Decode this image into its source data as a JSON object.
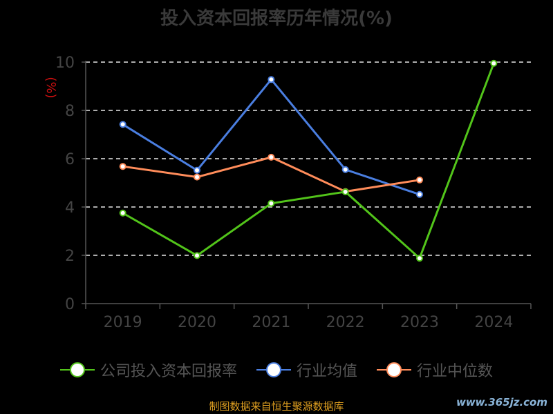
{
  "chart_data": {
    "type": "line",
    "title": "投入资本回报率历年情况(%)",
    "ylabel": "(%)",
    "categories": [
      "2019",
      "2020",
      "2021",
      "2022",
      "2023",
      "2024"
    ],
    "ylim": [
      0,
      10
    ],
    "yticks": [
      0,
      2,
      4,
      6,
      8,
      10
    ],
    "grid": true,
    "legend_position": "bottom",
    "series": [
      {
        "name": "公司投入资本回报率",
        "color": "#52c41a",
        "values": [
          3.75,
          1.99,
          4.15,
          4.63,
          1.88,
          9.95
        ]
      },
      {
        "name": "行业均值",
        "color": "#4a7ee0",
        "values": [
          7.42,
          5.52,
          9.28,
          5.55,
          4.52,
          null
        ]
      },
      {
        "name": "行业中位数",
        "color": "#ff8c5a",
        "values": [
          5.68,
          5.24,
          6.06,
          4.64,
          5.12,
          null
        ]
      }
    ]
  },
  "footer": "制图数据来自恒生聚源数据库",
  "watermark": "www.365jz.com"
}
